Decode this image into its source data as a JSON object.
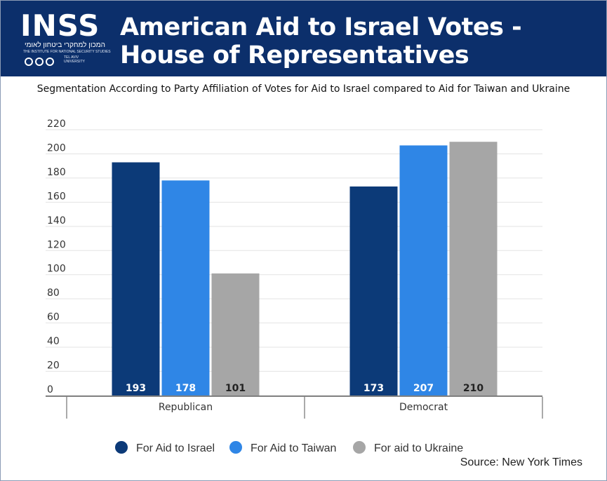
{
  "header": {
    "logo_text": "INSS",
    "logo_hebrew": "המכון למחקרי ביטחון לאומי",
    "logo_english": "THE INSTITUTE FOR NATIONAL SECURITY STUDIES",
    "logo_university": "TEL AVIV UNIVERSITY",
    "title": "American Aid to Israel Votes - House of Representatives"
  },
  "subtitle": "Segmentation According to Party Affiliation of Votes for Aid to Israel compared to Aid for Taiwan and Ukraine",
  "source": "Source: New York Times",
  "colors": {
    "header_bg": "#0c2f6b",
    "israel": "#0c3a78",
    "taiwan": "#2f86e6",
    "ukraine": "#a6a6a6"
  },
  "chart_data": {
    "type": "bar",
    "title": "American Aid to Israel Votes - House of Representatives",
    "categories": [
      "Republican",
      "Democrat"
    ],
    "series": [
      {
        "name": "For Aid to Israel",
        "values": [
          193,
          173
        ],
        "color": "#0c3a78",
        "label_color": "#ffffff"
      },
      {
        "name": "For Aid to Taiwan",
        "values": [
          178,
          207
        ],
        "color": "#2f86e6",
        "label_color": "#ffffff"
      },
      {
        "name": "For aid to Ukraine",
        "values": [
          101,
          210
        ],
        "color": "#a6a6a6",
        "label_color": "#222222"
      }
    ],
    "ylim": [
      0,
      220
    ],
    "yticks": [
      0,
      20,
      40,
      60,
      80,
      100,
      120,
      140,
      160,
      180,
      200,
      220
    ],
    "xlabel": "",
    "ylabel": "",
    "grid": true,
    "legend": "bottom-center"
  }
}
